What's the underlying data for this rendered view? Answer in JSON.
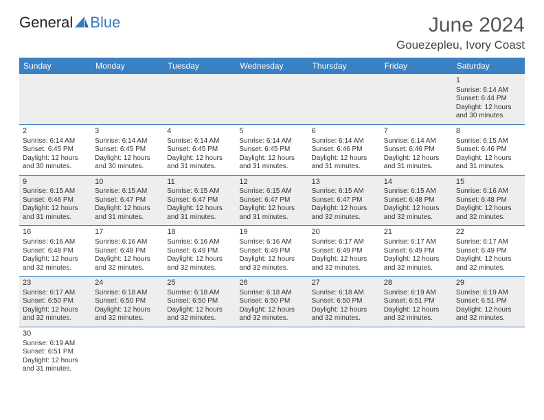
{
  "brand": {
    "part1": "General",
    "part2": "Blue"
  },
  "title": "June 2024",
  "location": "Gouezepleu, Ivory Coast",
  "colors": {
    "header_bg": "#3a81c4",
    "header_fg": "#ffffff",
    "alt_row_bg": "#eeeeee",
    "sep_color": "#3a81c4",
    "brand_blue": "#2f7bbf"
  },
  "day_headers": [
    "Sunday",
    "Monday",
    "Tuesday",
    "Wednesday",
    "Thursday",
    "Friday",
    "Saturday"
  ],
  "weeks": [
    [
      null,
      null,
      null,
      null,
      null,
      null,
      {
        "n": "1",
        "sr": "Sunrise: 6:14 AM",
        "ss": "Sunset: 6:44 PM",
        "d1": "Daylight: 12 hours",
        "d2": "and 30 minutes."
      }
    ],
    [
      {
        "n": "2",
        "sr": "Sunrise: 6:14 AM",
        "ss": "Sunset: 6:45 PM",
        "d1": "Daylight: 12 hours",
        "d2": "and 30 minutes."
      },
      {
        "n": "3",
        "sr": "Sunrise: 6:14 AM",
        "ss": "Sunset: 6:45 PM",
        "d1": "Daylight: 12 hours",
        "d2": "and 30 minutes."
      },
      {
        "n": "4",
        "sr": "Sunrise: 6:14 AM",
        "ss": "Sunset: 6:45 PM",
        "d1": "Daylight: 12 hours",
        "d2": "and 31 minutes."
      },
      {
        "n": "5",
        "sr": "Sunrise: 6:14 AM",
        "ss": "Sunset: 6:45 PM",
        "d1": "Daylight: 12 hours",
        "d2": "and 31 minutes."
      },
      {
        "n": "6",
        "sr": "Sunrise: 6:14 AM",
        "ss": "Sunset: 6:46 PM",
        "d1": "Daylight: 12 hours",
        "d2": "and 31 minutes."
      },
      {
        "n": "7",
        "sr": "Sunrise: 6:14 AM",
        "ss": "Sunset: 6:46 PM",
        "d1": "Daylight: 12 hours",
        "d2": "and 31 minutes."
      },
      {
        "n": "8",
        "sr": "Sunrise: 6:15 AM",
        "ss": "Sunset: 6:46 PM",
        "d1": "Daylight: 12 hours",
        "d2": "and 31 minutes."
      }
    ],
    [
      {
        "n": "9",
        "sr": "Sunrise: 6:15 AM",
        "ss": "Sunset: 6:46 PM",
        "d1": "Daylight: 12 hours",
        "d2": "and 31 minutes."
      },
      {
        "n": "10",
        "sr": "Sunrise: 6:15 AM",
        "ss": "Sunset: 6:47 PM",
        "d1": "Daylight: 12 hours",
        "d2": "and 31 minutes."
      },
      {
        "n": "11",
        "sr": "Sunrise: 6:15 AM",
        "ss": "Sunset: 6:47 PM",
        "d1": "Daylight: 12 hours",
        "d2": "and 31 minutes."
      },
      {
        "n": "12",
        "sr": "Sunrise: 6:15 AM",
        "ss": "Sunset: 6:47 PM",
        "d1": "Daylight: 12 hours",
        "d2": "and 31 minutes."
      },
      {
        "n": "13",
        "sr": "Sunrise: 6:15 AM",
        "ss": "Sunset: 6:47 PM",
        "d1": "Daylight: 12 hours",
        "d2": "and 32 minutes."
      },
      {
        "n": "14",
        "sr": "Sunrise: 6:15 AM",
        "ss": "Sunset: 6:48 PM",
        "d1": "Daylight: 12 hours",
        "d2": "and 32 minutes."
      },
      {
        "n": "15",
        "sr": "Sunrise: 6:16 AM",
        "ss": "Sunset: 6:48 PM",
        "d1": "Daylight: 12 hours",
        "d2": "and 32 minutes."
      }
    ],
    [
      {
        "n": "16",
        "sr": "Sunrise: 6:16 AM",
        "ss": "Sunset: 6:48 PM",
        "d1": "Daylight: 12 hours",
        "d2": "and 32 minutes."
      },
      {
        "n": "17",
        "sr": "Sunrise: 6:16 AM",
        "ss": "Sunset: 6:48 PM",
        "d1": "Daylight: 12 hours",
        "d2": "and 32 minutes."
      },
      {
        "n": "18",
        "sr": "Sunrise: 6:16 AM",
        "ss": "Sunset: 6:49 PM",
        "d1": "Daylight: 12 hours",
        "d2": "and 32 minutes."
      },
      {
        "n": "19",
        "sr": "Sunrise: 6:16 AM",
        "ss": "Sunset: 6:49 PM",
        "d1": "Daylight: 12 hours",
        "d2": "and 32 minutes."
      },
      {
        "n": "20",
        "sr": "Sunrise: 6:17 AM",
        "ss": "Sunset: 6:49 PM",
        "d1": "Daylight: 12 hours",
        "d2": "and 32 minutes."
      },
      {
        "n": "21",
        "sr": "Sunrise: 6:17 AM",
        "ss": "Sunset: 6:49 PM",
        "d1": "Daylight: 12 hours",
        "d2": "and 32 minutes."
      },
      {
        "n": "22",
        "sr": "Sunrise: 6:17 AM",
        "ss": "Sunset: 6:49 PM",
        "d1": "Daylight: 12 hours",
        "d2": "and 32 minutes."
      }
    ],
    [
      {
        "n": "23",
        "sr": "Sunrise: 6:17 AM",
        "ss": "Sunset: 6:50 PM",
        "d1": "Daylight: 12 hours",
        "d2": "and 32 minutes."
      },
      {
        "n": "24",
        "sr": "Sunrise: 6:18 AM",
        "ss": "Sunset: 6:50 PM",
        "d1": "Daylight: 12 hours",
        "d2": "and 32 minutes."
      },
      {
        "n": "25",
        "sr": "Sunrise: 6:18 AM",
        "ss": "Sunset: 6:50 PM",
        "d1": "Daylight: 12 hours",
        "d2": "and 32 minutes."
      },
      {
        "n": "26",
        "sr": "Sunrise: 6:18 AM",
        "ss": "Sunset: 6:50 PM",
        "d1": "Daylight: 12 hours",
        "d2": "and 32 minutes."
      },
      {
        "n": "27",
        "sr": "Sunrise: 6:18 AM",
        "ss": "Sunset: 6:50 PM",
        "d1": "Daylight: 12 hours",
        "d2": "and 32 minutes."
      },
      {
        "n": "28",
        "sr": "Sunrise: 6:19 AM",
        "ss": "Sunset: 6:51 PM",
        "d1": "Daylight: 12 hours",
        "d2": "and 32 minutes."
      },
      {
        "n": "29",
        "sr": "Sunrise: 6:19 AM",
        "ss": "Sunset: 6:51 PM",
        "d1": "Daylight: 12 hours",
        "d2": "and 32 minutes."
      }
    ],
    [
      {
        "n": "30",
        "sr": "Sunrise: 6:19 AM",
        "ss": "Sunset: 6:51 PM",
        "d1": "Daylight: 12 hours",
        "d2": "and 31 minutes."
      },
      null,
      null,
      null,
      null,
      null,
      null
    ]
  ]
}
